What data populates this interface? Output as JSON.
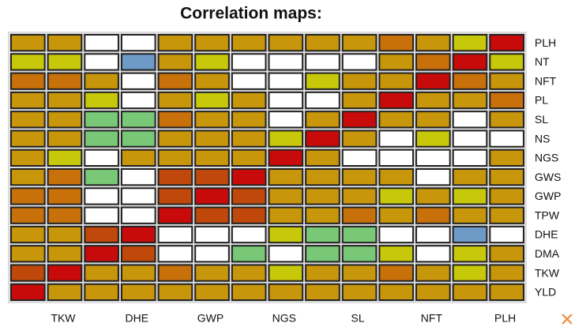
{
  "chart_data": {
    "type": "heatmap",
    "title": "Correlation maps:",
    "x_categories": [
      null,
      "TKW",
      null,
      "DHE",
      null,
      "GWP",
      null,
      "NGS",
      null,
      "SL",
      null,
      "NFT",
      null,
      "PLH"
    ],
    "y_categories": [
      "PLH",
      "NT",
      "NFT",
      "PL",
      "SL",
      "NS",
      "NGS",
      "GWS",
      "GWP",
      "TPW",
      "DHE",
      "DMA",
      "TKW",
      "YLD"
    ],
    "cell_colors": [
      [
        "#c8960a",
        "#c8960a",
        "#ffffff",
        "#ffffff",
        "#c8960a",
        "#c8960a",
        "#c8960a",
        "#c8960a",
        "#c8960a",
        "#c8960a",
        "#c8700a",
        "#c8960a",
        "#c8c80a",
        "#c80a0a"
      ],
      [
        "#c8c80a",
        "#c8c80a",
        "#ffffff",
        "#6e9ac8",
        "#c8960a",
        "#c8c80a",
        "#ffffff",
        "#ffffff",
        "#ffffff",
        "#ffffff",
        "#c8960a",
        "#c8700a",
        "#c80a0a",
        "#c8c80a"
      ],
      [
        "#c8700a",
        "#c8700a",
        "#c8960a",
        "#ffffff",
        "#c8700a",
        "#c8960a",
        "#ffffff",
        "#ffffff",
        "#c8c80a",
        "#c8960a",
        "#c8960a",
        "#c80a0a",
        "#c8700a",
        "#c8960a"
      ],
      [
        "#c8960a",
        "#c8960a",
        "#c8c80a",
        "#ffffff",
        "#c8960a",
        "#c8c80a",
        "#c8960a",
        "#ffffff",
        "#ffffff",
        "#c8960a",
        "#c80a0a",
        "#c8960a",
        "#c8960a",
        "#c8700a"
      ],
      [
        "#c8960a",
        "#c8960a",
        "#78c878",
        "#78c878",
        "#c8700a",
        "#c8960a",
        "#c8960a",
        "#ffffff",
        "#c8960a",
        "#c80a0a",
        "#c8960a",
        "#c8960a",
        "#ffffff",
        "#c8960a"
      ],
      [
        "#c8960a",
        "#c8960a",
        "#78c878",
        "#78c878",
        "#c8960a",
        "#c8960a",
        "#c8960a",
        "#c8c80a",
        "#c80a0a",
        "#c8960a",
        "#ffffff",
        "#c8c80a",
        "#ffffff",
        "#ffffff"
      ],
      [
        "#c8960a",
        "#c8c80a",
        "#ffffff",
        "#c8960a",
        "#c8960a",
        "#c8960a",
        "#c8960a",
        "#c80a0a",
        "#c8960a",
        "#ffffff",
        "#ffffff",
        "#ffffff",
        "#ffffff",
        "#c8960a"
      ],
      [
        "#c8960a",
        "#c8700a",
        "#78c878",
        "#ffffff",
        "#c0480a",
        "#c0480a",
        "#c80a0a",
        "#c8960a",
        "#c8960a",
        "#c8960a",
        "#c8960a",
        "#ffffff",
        "#c8960a",
        "#c8960a"
      ],
      [
        "#c8700a",
        "#c8700a",
        "#ffffff",
        "#ffffff",
        "#c0480a",
        "#c80a0a",
        "#c0480a",
        "#c8960a",
        "#c8960a",
        "#c8960a",
        "#c8c80a",
        "#c8960a",
        "#c8c80a",
        "#c8960a"
      ],
      [
        "#c8700a",
        "#c8700a",
        "#ffffff",
        "#ffffff",
        "#c80a0a",
        "#c0480a",
        "#c0480a",
        "#c8960a",
        "#c8960a",
        "#c8700a",
        "#c8960a",
        "#c8700a",
        "#c8960a",
        "#c8960a"
      ],
      [
        "#c8960a",
        "#c8960a",
        "#c0480a",
        "#c80a0a",
        "#ffffff",
        "#ffffff",
        "#ffffff",
        "#c8c80a",
        "#78c878",
        "#78c878",
        "#ffffff",
        "#ffffff",
        "#6e9ac8",
        "#ffffff"
      ],
      [
        "#c8960a",
        "#c8960a",
        "#c80a0a",
        "#c0480a",
        "#ffffff",
        "#ffffff",
        "#78c878",
        "#ffffff",
        "#78c878",
        "#78c878",
        "#c8c80a",
        "#ffffff",
        "#c8c80a",
        "#c8960a"
      ],
      [
        "#c0480a",
        "#c80a0a",
        "#c8960a",
        "#c8960a",
        "#c8700a",
        "#c8960a",
        "#c8960a",
        "#c8c80a",
        "#c8960a",
        "#c8960a",
        "#c8700a",
        "#c8960a",
        "#c8c80a",
        "#c8960a"
      ],
      [
        "#c80a0a",
        "#c8960a",
        "#c8960a",
        "#c8960a",
        "#c8960a",
        "#c8960a",
        "#c8960a",
        "#c8960a",
        "#c8960a",
        "#c8960a",
        "#c8960a",
        "#c8960a",
        "#c8960a",
        "#c8960a"
      ]
    ]
  }
}
